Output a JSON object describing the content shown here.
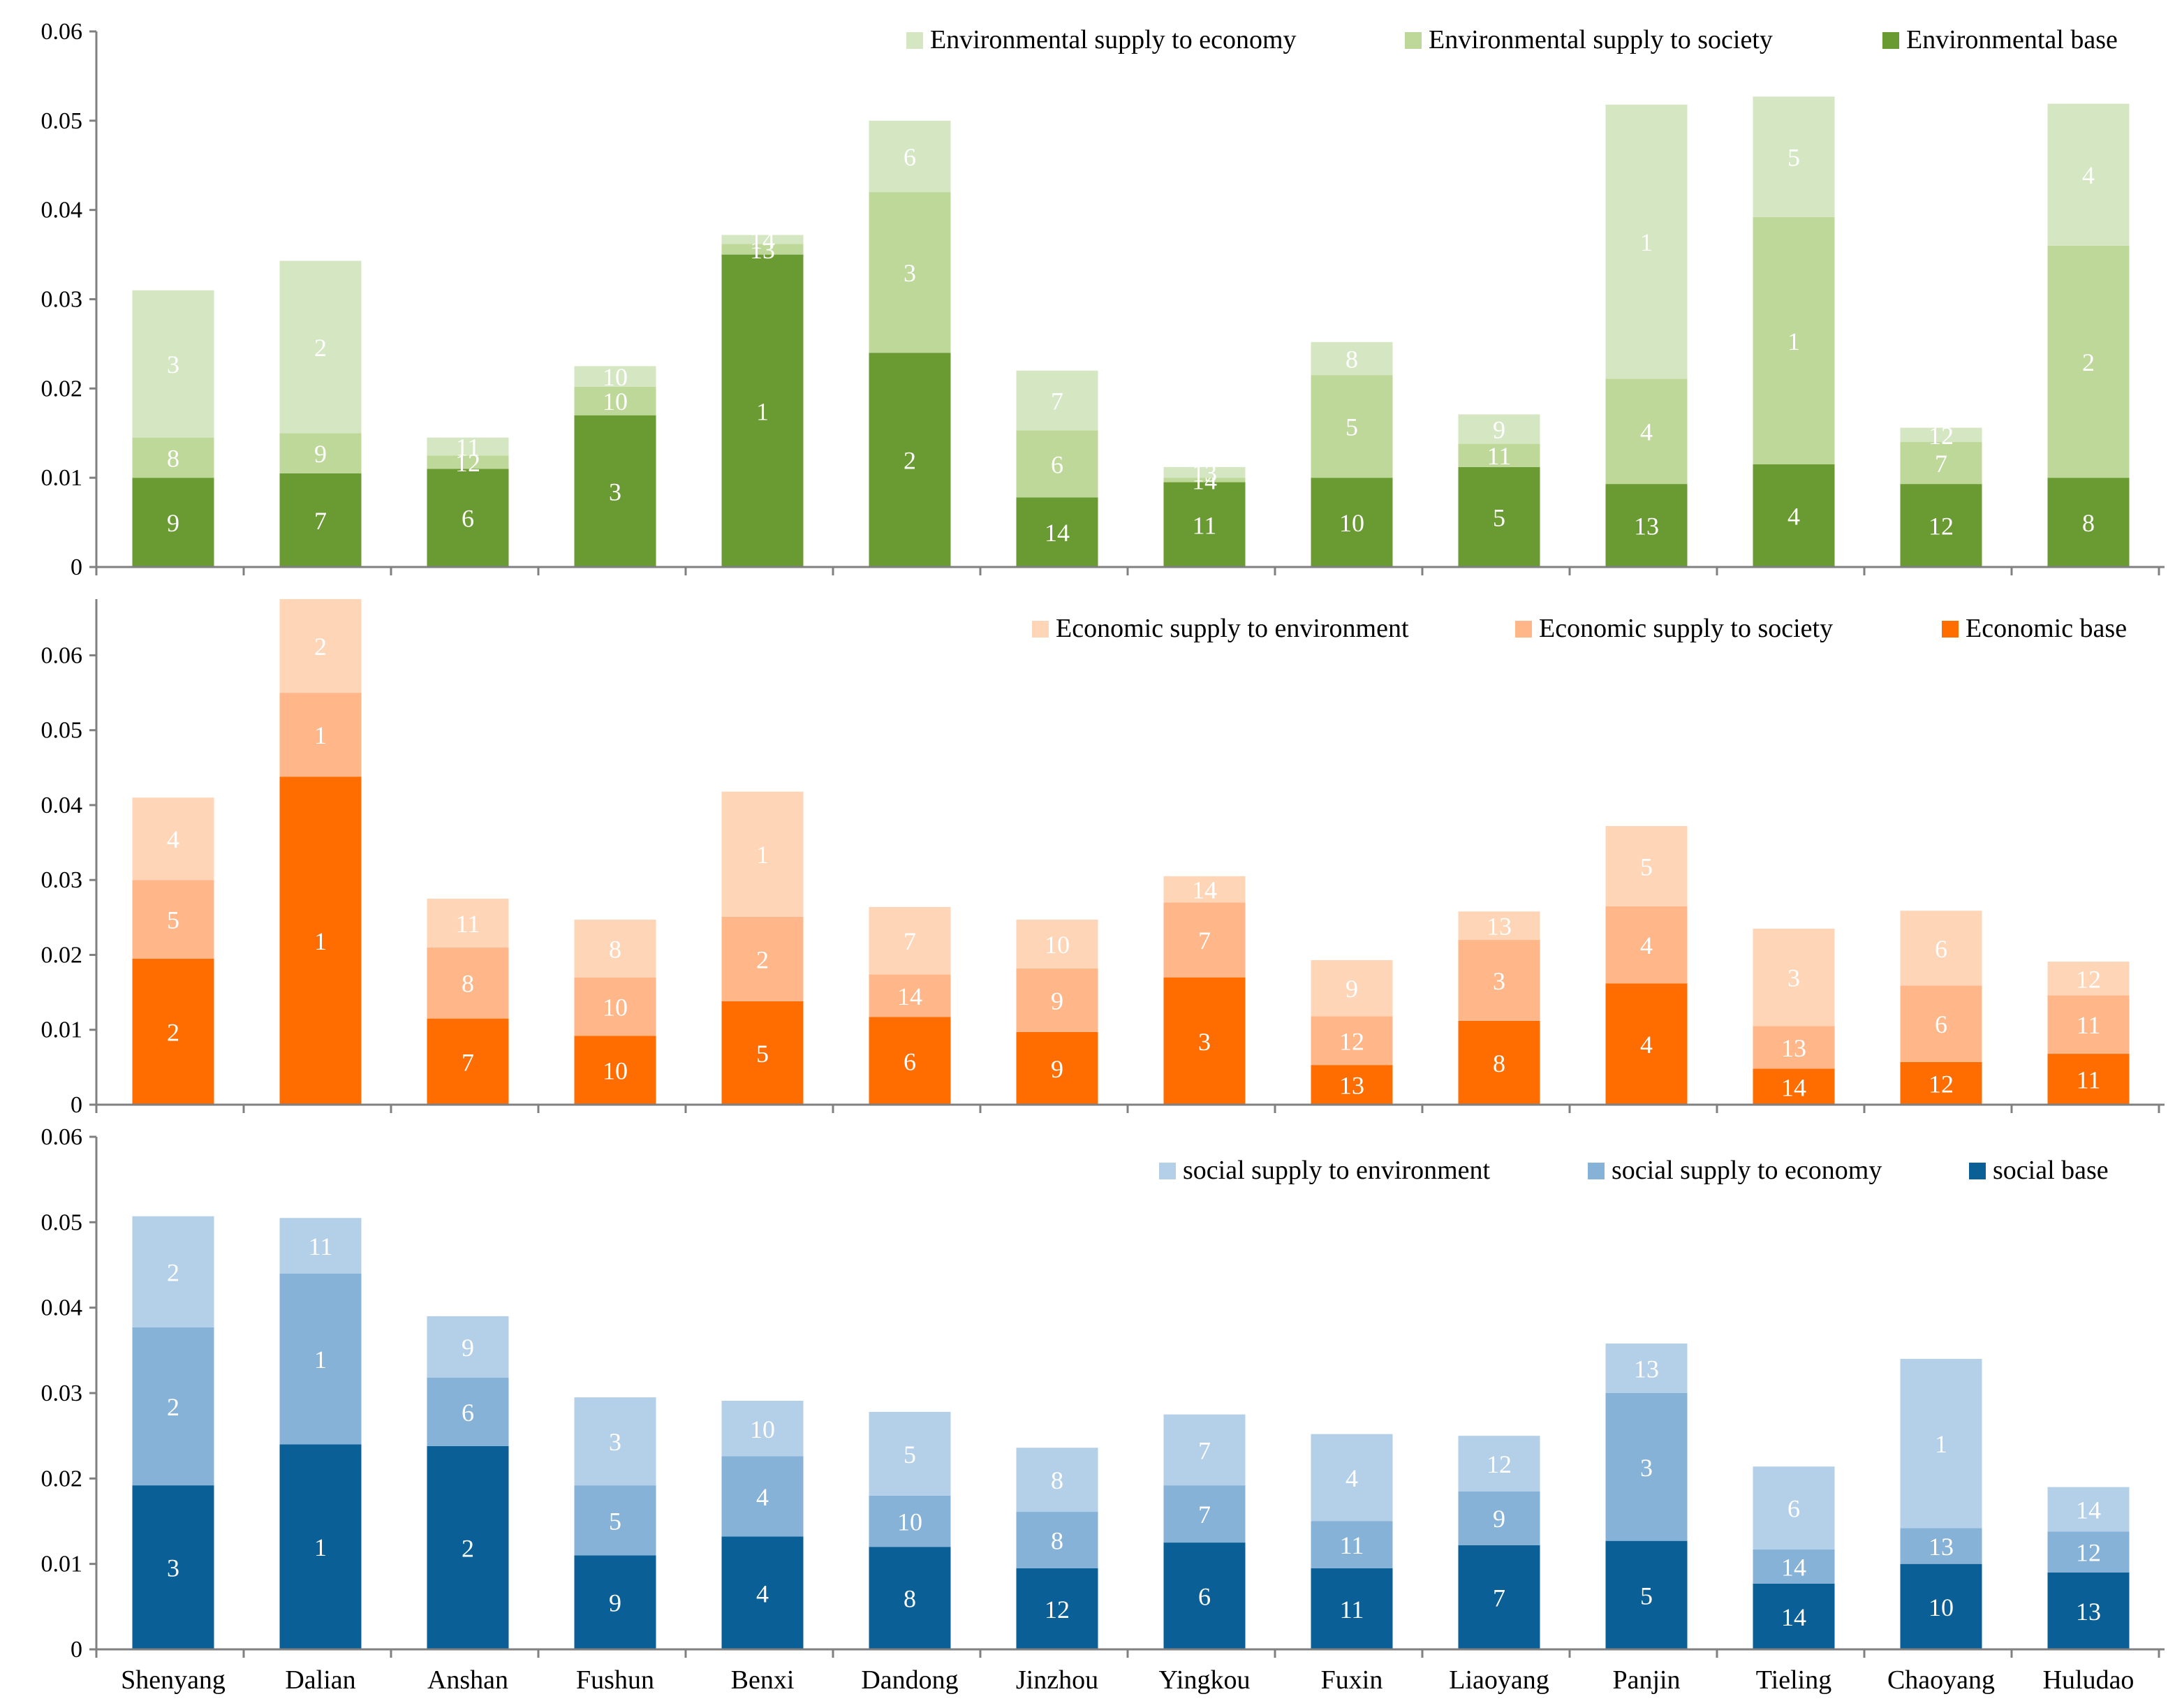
{
  "chart_data": [
    {
      "type": "bar",
      "stacked": true,
      "panel": "environmental",
      "ylim": [
        0,
        0.06
      ],
      "yticks": [
        "0",
        "0.01",
        "0.02",
        "0.03",
        "0.04",
        "0.05",
        "0.06"
      ],
      "categories": [
        "Shenyang",
        "Dalian",
        "Anshan",
        "Fushun",
        "Benxi",
        "Dandong",
        "Jinzhou",
        "Yingkou",
        "Fuxin",
        "Liaoyang",
        "Panjin",
        "Tieling",
        "Chaoyang",
        "Huludao"
      ],
      "legend_position": "top-right",
      "series": [
        {
          "name": "Environmental base",
          "color": "#6a9a32",
          "values": [
            0.01,
            0.0105,
            0.011,
            0.017,
            0.035,
            0.024,
            0.0078,
            0.0095,
            0.01,
            0.0112,
            0.0093,
            0.0115,
            0.0093,
            0.01
          ],
          "ranks": [
            "9",
            "7",
            "6",
            "3",
            "1",
            "2",
            "14",
            "11",
            "10",
            "5",
            "13",
            "4",
            "12",
            "8"
          ]
        },
        {
          "name": "Environmental supply to society",
          "color": "#bdd898",
          "values": [
            0.0045,
            0.0045,
            0.0015,
            0.0032,
            0.0012,
            0.018,
            0.0075,
            0.0005,
            0.0115,
            0.0026,
            0.0118,
            0.0277,
            0.0047,
            0.026
          ],
          "ranks": [
            "8",
            "9",
            "12",
            "10",
            "13",
            "3",
            "6",
            "14",
            "5",
            "11",
            "4",
            "1",
            "7",
            "2"
          ]
        },
        {
          "name": "Environmental supply to economy",
          "color": "#d5e6c2",
          "values": [
            0.0165,
            0.0193,
            0.002,
            0.0023,
            0.001,
            0.008,
            0.0067,
            0.0012,
            0.0037,
            0.0033,
            0.0307,
            0.0135,
            0.0016,
            0.0159
          ],
          "ranks": [
            "3",
            "2",
            "11",
            "10",
            "14",
            "6",
            "7",
            "13",
            "8",
            "9",
            "1",
            "5",
            "12",
            "4"
          ]
        }
      ]
    },
    {
      "type": "bar",
      "stacked": true,
      "panel": "economic",
      "ylim": [
        0,
        0.0675
      ],
      "yticks": [
        "0",
        "0.01",
        "0.02",
        "0.03",
        "0.04",
        "0.05",
        "0.06"
      ],
      "categories": [
        "Shenyang",
        "Dalian",
        "Anshan",
        "Fushun",
        "Benxi",
        "Dandong",
        "Jinzhou",
        "Yingkou",
        "Fuxin",
        "Liaoyang",
        "Panjin",
        "Tieling",
        "Chaoyang",
        "Huludao"
      ],
      "legend_position": "top-right",
      "series": [
        {
          "name": "Economic base",
          "color": "#ff6d00",
          "values": [
            0.0195,
            0.0438,
            0.0115,
            0.0092,
            0.0138,
            0.0117,
            0.0097,
            0.017,
            0.0053,
            0.0112,
            0.0162,
            0.0048,
            0.0057,
            0.0068
          ],
          "ranks": [
            "2",
            "1",
            "7",
            "10",
            "5",
            "6",
            "9",
            "3",
            "13",
            "8",
            "4",
            "14",
            "12",
            "11"
          ]
        },
        {
          "name": "Economic supply to society",
          "color": "#ffb78a",
          "values": [
            0.0105,
            0.0112,
            0.0095,
            0.0078,
            0.0113,
            0.0057,
            0.0085,
            0.01,
            0.0065,
            0.0108,
            0.0103,
            0.0057,
            0.0102,
            0.0078
          ],
          "ranks": [
            "5",
            "1",
            "8",
            "10",
            "2",
            "14",
            "9",
            "7",
            "12",
            "3",
            "4",
            "13",
            "6",
            "11"
          ]
        },
        {
          "name": "Economic supply to environment",
          "color": "#ffd5b8",
          "values": [
            0.011,
            0.0125,
            0.0065,
            0.0077,
            0.0167,
            0.009,
            0.0065,
            0.0035,
            0.0075,
            0.0038,
            0.0107,
            0.013,
            0.01,
            0.0045
          ],
          "ranks": [
            "4",
            "2",
            "11",
            "8",
            "1",
            "7",
            "10",
            "14",
            "9",
            "13",
            "5",
            "3",
            "6",
            "12"
          ]
        }
      ]
    },
    {
      "type": "bar",
      "stacked": true,
      "panel": "social",
      "ylim": [
        0,
        0.06
      ],
      "yticks": [
        "0",
        "0.01",
        "0.02",
        "0.03",
        "0.04",
        "0.05",
        "0.06"
      ],
      "categories": [
        "Shenyang",
        "Dalian",
        "Anshan",
        "Fushun",
        "Benxi",
        "Dandong",
        "Jinzhou",
        "Yingkou",
        "Fuxin",
        "Liaoyang",
        "Panjin",
        "Tieling",
        "Chaoyang",
        "Huludao"
      ],
      "legend_position": "top-right",
      "series": [
        {
          "name": "social base",
          "color": "#0a5f96",
          "values": [
            0.0192,
            0.024,
            0.0238,
            0.011,
            0.0132,
            0.012,
            0.0095,
            0.0125,
            0.0095,
            0.0122,
            0.0127,
            0.0077,
            0.01,
            0.009
          ],
          "ranks": [
            "3",
            "1",
            "2",
            "9",
            "4",
            "8",
            "12",
            "6",
            "11",
            "7",
            "5",
            "14",
            "10",
            "13"
          ]
        },
        {
          "name": "social supply to economy",
          "color": "#87b2d8",
          "values": [
            0.0185,
            0.02,
            0.008,
            0.0082,
            0.0094,
            0.006,
            0.0066,
            0.0067,
            0.0055,
            0.0063,
            0.0173,
            0.004,
            0.0042,
            0.0048
          ],
          "ranks": [
            "2",
            "1",
            "6",
            "5",
            "4",
            "10",
            "8",
            "7",
            "11",
            "9",
            "3",
            "14",
            "13",
            "12"
          ]
        },
        {
          "name": "social supply to environment",
          "color": "#b4cfe8",
          "values": [
            0.013,
            0.0065,
            0.0072,
            0.0103,
            0.0065,
            0.0098,
            0.0075,
            0.0083,
            0.0102,
            0.0065,
            0.0058,
            0.0097,
            0.0198,
            0.0052
          ],
          "ranks": [
            "2",
            "11",
            "9",
            "3",
            "10",
            "5",
            "8",
            "7",
            "4",
            "12",
            "13",
            "6",
            "1",
            "14"
          ]
        }
      ]
    }
  ]
}
